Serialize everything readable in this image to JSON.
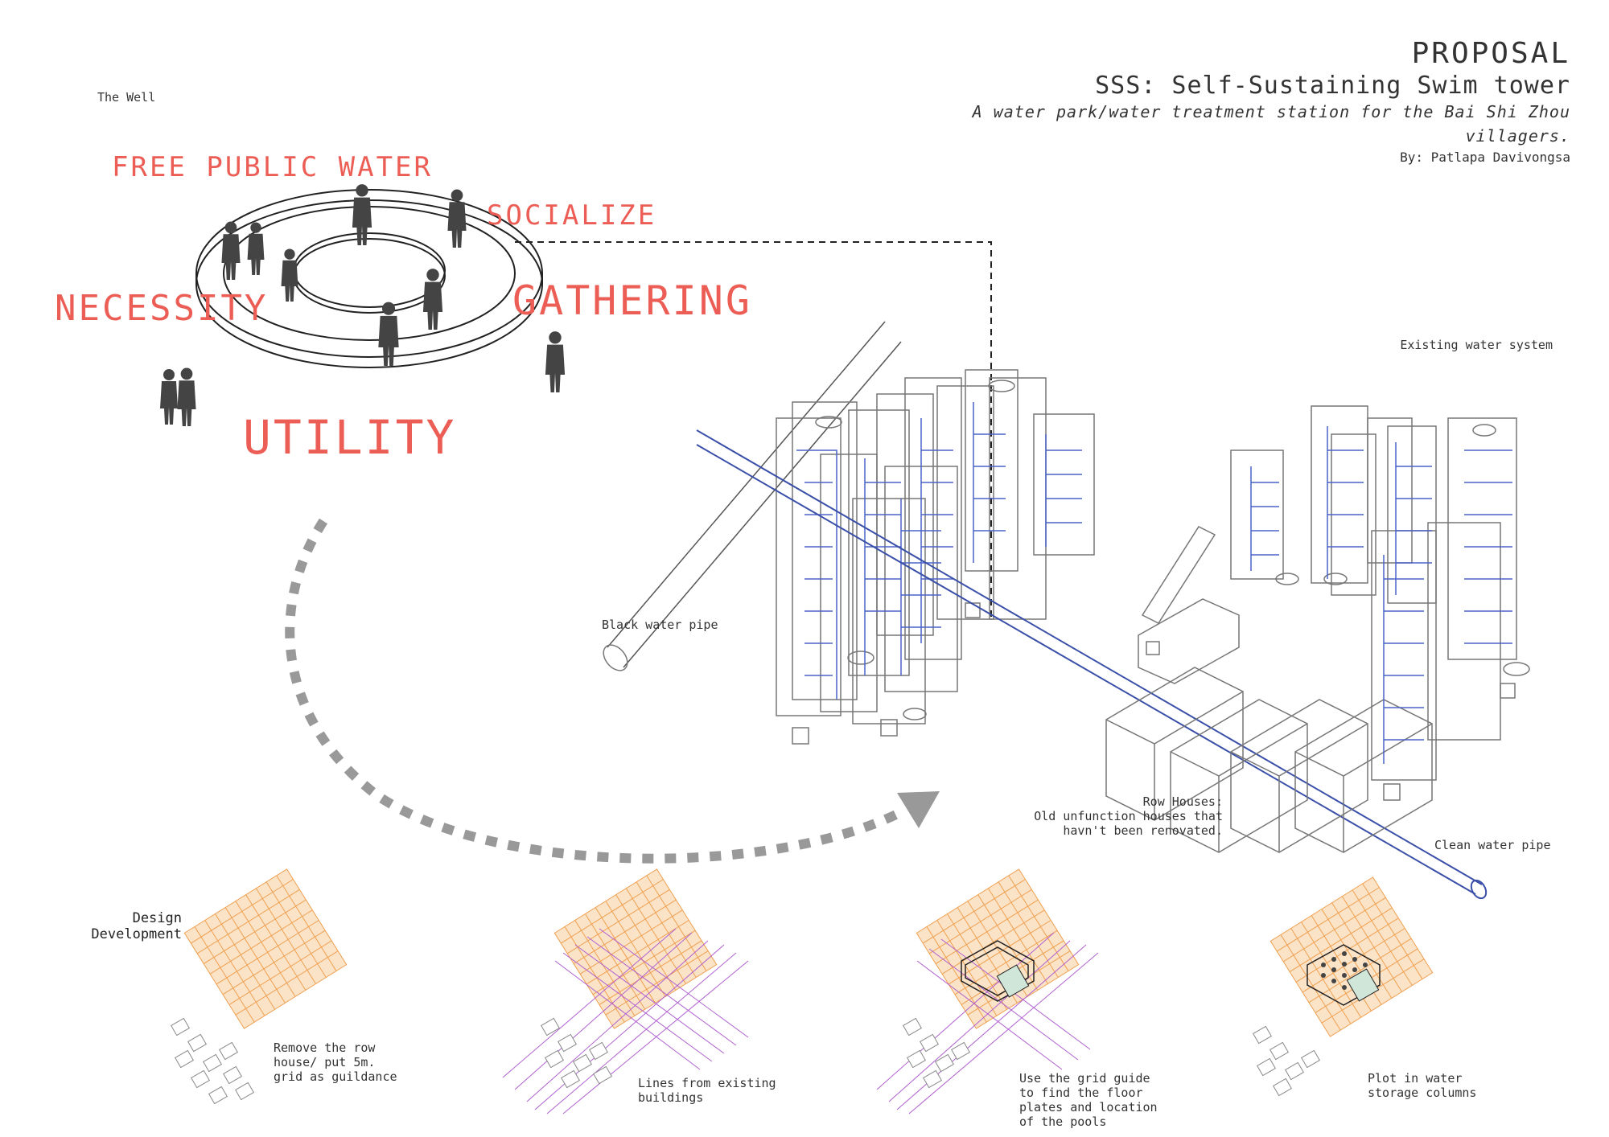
{
  "header": {
    "title": "PROPOSAL",
    "subtitle": "SSS: Self-Sustaining Swim tower",
    "description": "A water park/water treatment station for the Bai Shi Zhou villagers.",
    "author": "By: Patlapa Davivongsa"
  },
  "well": {
    "label": "The Well",
    "keywords": {
      "free_public_water": "FREE PUBLIC WATER",
      "socialize": "SOCIALIZE",
      "necessity": "NECESSITY",
      "gathering": "GATHERING",
      "utility": "UTILITY"
    }
  },
  "axonometric": {
    "existing_water_system": "Existing water system",
    "black_water_pipe": "Black water pipe",
    "row_houses": "Row Houses:\nOld unfunction houses that\nhavn't been renovated.",
    "clean_water_pipe": "Clean water pipe"
  },
  "design_development": {
    "label": "Design\nDevelopment",
    "steps": [
      {
        "caption": "Remove the row\nhouse/ put 5m.\ngrid as guildance"
      },
      {
        "caption": "Lines from existing\nbuildings"
      },
      {
        "caption": "Use the grid guide\nto find the floor\nplates and location\nof the pools"
      },
      {
        "caption": "Plot in water\nstorage columns"
      }
    ]
  },
  "colors": {
    "accent_red": "#ec5e55",
    "grid_orange": "#f0a050",
    "line_purple": "#b060d0",
    "pipe_blue": "#3a4fa8"
  }
}
